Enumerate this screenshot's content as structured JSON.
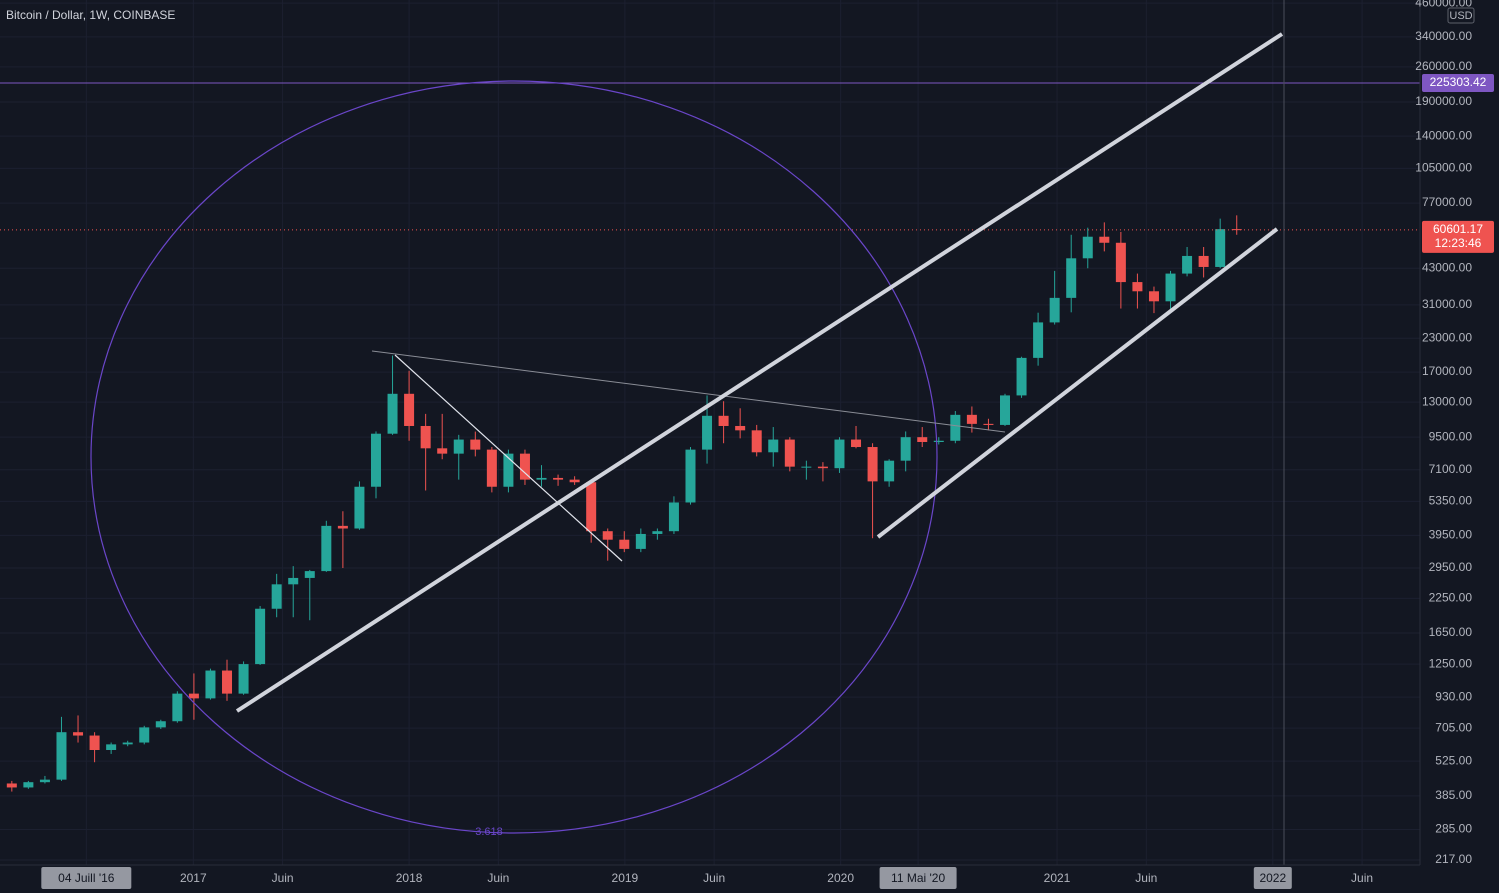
{
  "chart_data": {
    "type": "candlestick",
    "title": "Bitcoin / Dollar, 1W, COINBASE",
    "currency": "USD",
    "log_scale": true,
    "up_color": "#26a69a",
    "down_color": "#ef5350",
    "xlim": [
      "2016-02-09",
      "2022-09-07"
    ],
    "ylim": [
      207.5,
      472900
    ],
    "xticks": [
      {
        "value": "2016-07-04",
        "label": "04 Juill '16",
        "highlight": true
      },
      {
        "value": "2017-01-01",
        "label": "2017"
      },
      {
        "value": "2017-06-01",
        "label": "Juin"
      },
      {
        "value": "2018-01-01",
        "label": "2018"
      },
      {
        "value": "2018-06-01",
        "label": "Juin"
      },
      {
        "value": "2019-01-01",
        "label": "2019"
      },
      {
        "value": "2019-06-01",
        "label": "Juin"
      },
      {
        "value": "2020-01-01",
        "label": "2020"
      },
      {
        "value": "2020-05-11",
        "label": "11 Mai '20",
        "highlight": true
      },
      {
        "value": "2021-01-01",
        "label": "2021"
      },
      {
        "value": "2021-06-01",
        "label": "Juin"
      },
      {
        "value": "2022-01-01",
        "label": "2022",
        "highlight": true
      },
      {
        "value": "2022-06-01",
        "label": "Juin"
      }
    ],
    "yticks": [
      {
        "value": 460000,
        "label": "460000.00"
      },
      {
        "value": 340000,
        "label": "340000.00"
      },
      {
        "value": 260000,
        "label": "260000.00"
      },
      {
        "value": 190000,
        "label": "190000.00"
      },
      {
        "value": 140000,
        "label": "140000.00"
      },
      {
        "value": 105000,
        "label": "105000.00"
      },
      {
        "value": 77000,
        "label": "77000.00"
      },
      {
        "value": 43000,
        "label": "43000.00"
      },
      {
        "value": 31000,
        "label": "31000.00"
      },
      {
        "value": 23000,
        "label": "23000.00"
      },
      {
        "value": 17000,
        "label": "17000.00"
      },
      {
        "value": 13000,
        "label": "13000.00"
      },
      {
        "value": 9500,
        "label": "9500.00"
      },
      {
        "value": 7100,
        "label": "7100.00"
      },
      {
        "value": 5350,
        "label": "5350.00"
      },
      {
        "value": 3950,
        "label": "3950.00"
      },
      {
        "value": 2950,
        "label": "2950.00"
      },
      {
        "value": 2250,
        "label": "2250.00"
      },
      {
        "value": 1650,
        "label": "1650.00"
      },
      {
        "value": 1250,
        "label": "1250.00"
      },
      {
        "value": 930,
        "label": "930.00"
      },
      {
        "value": 705,
        "label": "705.00"
      },
      {
        "value": 525,
        "label": "525.00"
      },
      {
        "value": 385,
        "label": "385.00"
      },
      {
        "value": 285,
        "label": "285.00"
      },
      {
        "value": 217,
        "label": "217.00"
      }
    ],
    "hline": {
      "value": 225303.42,
      "label": "225303.42",
      "color": "#7e57c2"
    },
    "last_price": {
      "value": 60601.17,
      "label": "60601.17",
      "countdown": "12:23:46",
      "color": "#ef5350"
    },
    "circle_label": "3.618",
    "x": [
      "2016-02-29",
      "2016-03-28",
      "2016-04-25",
      "2016-05-23",
      "2016-06-20",
      "2016-07-18",
      "2016-08-15",
      "2016-09-12",
      "2016-10-10",
      "2016-11-07",
      "2016-12-05",
      "2017-01-02",
      "2017-01-30",
      "2017-02-27",
      "2017-03-27",
      "2017-04-24",
      "2017-05-22",
      "2017-06-19",
      "2017-07-17",
      "2017-08-14",
      "2017-09-11",
      "2017-10-09",
      "2017-11-06",
      "2017-12-04",
      "2018-01-01",
      "2018-01-29",
      "2018-02-26",
      "2018-03-26",
      "2018-04-23",
      "2018-05-21",
      "2018-06-18",
      "2018-07-16",
      "2018-08-13",
      "2018-09-10",
      "2018-10-08",
      "2018-11-05",
      "2018-12-03",
      "2018-12-31",
      "2019-01-28",
      "2019-02-25",
      "2019-03-25",
      "2019-04-22",
      "2019-05-20",
      "2019-06-17",
      "2019-07-15",
      "2019-08-12",
      "2019-09-09",
      "2019-10-07",
      "2019-11-04",
      "2019-12-02",
      "2019-12-30",
      "2020-01-27",
      "2020-02-24",
      "2020-03-23",
      "2020-04-20",
      "2020-05-18",
      "2020-06-15",
      "2020-07-13",
      "2020-08-10",
      "2020-09-07",
      "2020-10-05",
      "2020-11-02",
      "2020-11-30",
      "2020-12-28",
      "2021-01-25",
      "2021-02-22",
      "2021-03-22",
      "2021-04-19",
      "2021-05-17",
      "2021-06-14",
      "2021-07-12",
      "2021-08-09",
      "2021-09-06",
      "2021-10-04",
      "2021-11-01"
    ],
    "ohlc": [
      [
        430,
        440,
        400,
        415
      ],
      [
        415,
        440,
        410,
        435
      ],
      [
        435,
        460,
        430,
        445
      ],
      [
        445,
        780,
        440,
        680
      ],
      [
        680,
        790,
        620,
        660
      ],
      [
        660,
        680,
        520,
        580
      ],
      [
        580,
        620,
        560,
        610
      ],
      [
        610,
        630,
        600,
        620
      ],
      [
        620,
        720,
        610,
        710
      ],
      [
        710,
        760,
        700,
        750
      ],
      [
        750,
        980,
        740,
        960
      ],
      [
        960,
        1150,
        760,
        920
      ],
      [
        920,
        1200,
        910,
        1180
      ],
      [
        1180,
        1300,
        900,
        960
      ],
      [
        960,
        1280,
        950,
        1250
      ],
      [
        1250,
        2100,
        1240,
        2050
      ],
      [
        2050,
        2800,
        1900,
        2550
      ],
      [
        2550,
        3000,
        1900,
        2700
      ],
      [
        2700,
        2900,
        1850,
        2870
      ],
      [
        2870,
        4500,
        2850,
        4300
      ],
      [
        4300,
        4900,
        2950,
        4200
      ],
      [
        4200,
        6400,
        4150,
        6100
      ],
      [
        6100,
        10000,
        5500,
        9800
      ],
      [
        9800,
        19700,
        9700,
        14000
      ],
      [
        14000,
        17200,
        9200,
        10500
      ],
      [
        10500,
        11700,
        5900,
        8600
      ],
      [
        8600,
        11700,
        7800,
        8200
      ],
      [
        8200,
        9700,
        6500,
        9300
      ],
      [
        9300,
        9990,
        8000,
        8500
      ],
      [
        8500,
        8700,
        5800,
        6100
      ],
      [
        6100,
        8500,
        5800,
        8200
      ],
      [
        8200,
        8500,
        6200,
        6500
      ],
      [
        6500,
        7400,
        6100,
        6600
      ],
      [
        6600,
        6800,
        6150,
        6500
      ],
      [
        6500,
        6700,
        6200,
        6350
      ],
      [
        6350,
        6500,
        3700,
        4100
      ],
      [
        4100,
        4200,
        3150,
        3800
      ],
      [
        3800,
        4100,
        3400,
        3500
      ],
      [
        3500,
        4200,
        3400,
        4000
      ],
      [
        4000,
        4200,
        3800,
        4100
      ],
      [
        4100,
        5600,
        4000,
        5300
      ],
      [
        5300,
        8700,
        5200,
        8500
      ],
      [
        8500,
        13800,
        7500,
        11500
      ],
      [
        11500,
        13100,
        9000,
        10500
      ],
      [
        10500,
        12300,
        9400,
        10100
      ],
      [
        10100,
        10600,
        8000,
        8300
      ],
      [
        8300,
        10400,
        7300,
        9300
      ],
      [
        9300,
        9500,
        7000,
        7300
      ],
      [
        7300,
        7700,
        6500,
        7300
      ],
      [
        7300,
        7600,
        6400,
        7200
      ],
      [
        7200,
        9500,
        6900,
        9300
      ],
      [
        9300,
        10500,
        8600,
        8700
      ],
      [
        8700,
        9000,
        3850,
        6400
      ],
      [
        6400,
        7800,
        6100,
        7700
      ],
      [
        7700,
        10000,
        7000,
        9500
      ],
      [
        9500,
        10400,
        8700,
        9100
      ],
      [
        9100,
        9500,
        8900,
        9200
      ],
      [
        9200,
        12000,
        9000,
        11600
      ],
      [
        11600,
        12500,
        9900,
        10700
      ],
      [
        10700,
        11200,
        10100,
        10600
      ],
      [
        10600,
        14000,
        10500,
        13800
      ],
      [
        13800,
        19500,
        13500,
        19300
      ],
      [
        19300,
        28900,
        18000,
        26500
      ],
      [
        26500,
        42000,
        26000,
        33000
      ],
      [
        33000,
        58000,
        29000,
        47000
      ],
      [
        47000,
        61800,
        43000,
        57000
      ],
      [
        57000,
        64800,
        50000,
        54000
      ],
      [
        54000,
        59500,
        30000,
        38000
      ],
      [
        38000,
        41000,
        30000,
        35000
      ],
      [
        35000,
        36500,
        28800,
        32000
      ],
      [
        32000,
        42000,
        29500,
        41000
      ],
      [
        41000,
        52000,
        40000,
        48000
      ],
      [
        48000,
        52000,
        39600,
        43500
      ],
      [
        43500,
        67000,
        43000,
        61000
      ],
      [
        61000,
        69000,
        58000,
        60601.17
      ]
    ]
  }
}
